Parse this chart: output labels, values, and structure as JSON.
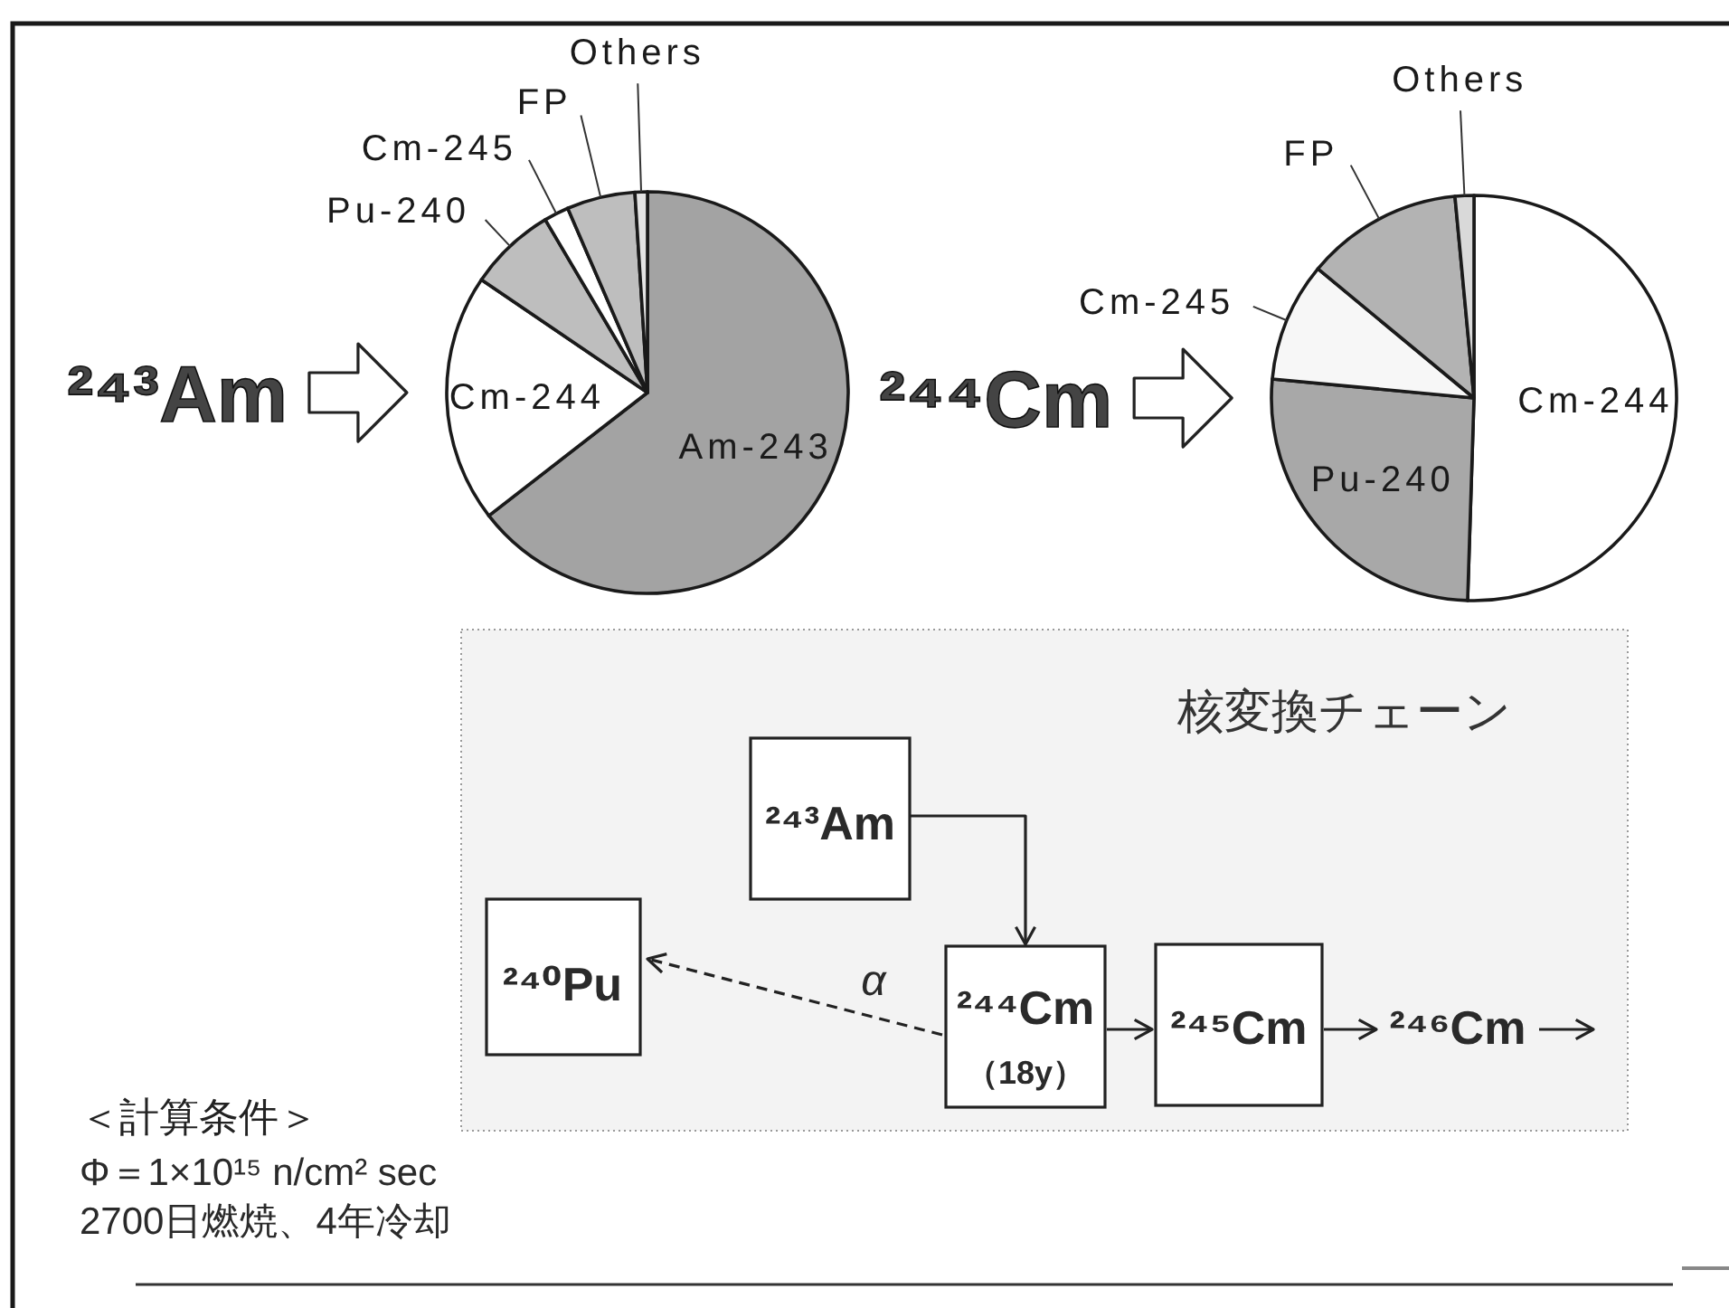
{
  "chart_data": [
    {
      "type": "pie",
      "title": "²⁴³Am",
      "categories": [
        "Am-243",
        "Cm-244",
        "Pu-240",
        "Cm-245",
        "FP",
        "Others"
      ],
      "values": [
        64.5,
        20,
        7,
        2,
        5.5,
        1
      ],
      "colors": [
        "#a3a3a3",
        "#ffffff",
        "#bebebe",
        "#ffffff",
        "#bebebe",
        "#e4e4e4"
      ]
    },
    {
      "type": "pie",
      "title": "²⁴⁴Cm",
      "categories": [
        "Cm-244",
        "Pu-240",
        "Cm-245",
        "FP",
        "Others"
      ],
      "values": [
        50.5,
        26,
        9.5,
        12.5,
        1.5
      ],
      "colors": [
        "#ffffff",
        "#a8a8a8",
        "#f7f7f7",
        "#b3b3b3",
        "#d9d9d9"
      ]
    },
    {
      "type": "other",
      "title": "核変換チェーン",
      "annotations": [
        "²⁴³Am",
        "²⁴⁰Pu",
        "α",
        "²⁴⁴Cm",
        "（18y）",
        "²⁴⁵Cm",
        "²⁴⁶Cm"
      ]
    },
    {
      "type": "other",
      "title": "＜計算条件＞",
      "annotations": [
        "Φ＝1×10¹⁵ n/cm² sec",
        "2700日燃焼、4年冷却"
      ]
    }
  ]
}
